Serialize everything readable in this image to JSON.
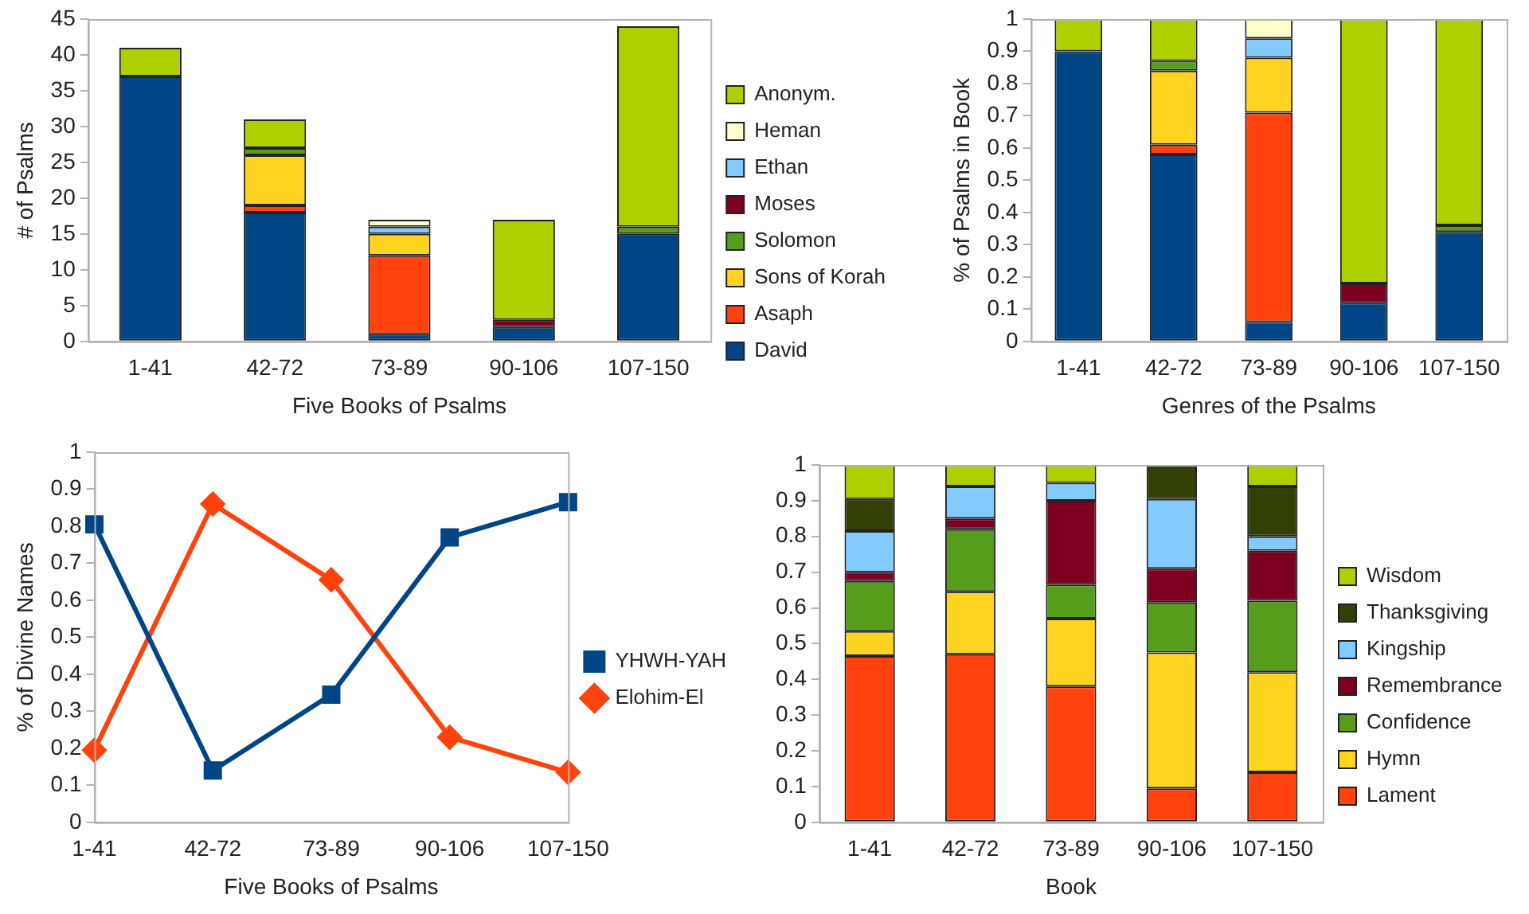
{
  "chart_data": [
    {
      "type": "bar",
      "stacked": true,
      "xlabel": "Five Books of Psalms",
      "ylabel": "# of Psalms",
      "categories": [
        "1-41",
        "42-72",
        "73-89",
        "90-106",
        "107-150"
      ],
      "ylim": [
        0,
        45
      ],
      "yticks": [
        0,
        5,
        10,
        15,
        20,
        25,
        30,
        35,
        40,
        45
      ],
      "grid": false,
      "legend": "right",
      "series": [
        {
          "name": "David",
          "color": "#004586",
          "values": [
            37,
            18,
            1,
            2,
            15
          ]
        },
        {
          "name": "Asaph",
          "color": "#ff420e",
          "values": [
            0,
            1,
            11,
            0,
            0
          ]
        },
        {
          "name": "Sons of Korah",
          "color": "#ffd320",
          "values": [
            0,
            7,
            3,
            0,
            0
          ]
        },
        {
          "name": "Solomon",
          "color": "#579d1c",
          "values": [
            0,
            1,
            0,
            0,
            1
          ]
        },
        {
          "name": "Moses",
          "color": "#7e0021",
          "values": [
            0,
            0,
            0,
            1,
            0
          ]
        },
        {
          "name": "Ethan",
          "color": "#83caff",
          "values": [
            0,
            0,
            1,
            0,
            0
          ]
        },
        {
          "name": "Heman",
          "color": "#ffffcc",
          "values": [
            0,
            0,
            1,
            0,
            0
          ]
        },
        {
          "name": "Anonym.",
          "color": "#aecf00",
          "values": [
            4,
            4,
            0,
            14,
            28
          ]
        }
      ]
    },
    {
      "type": "bar",
      "stacked": true,
      "xlabel": "Genres of the Psalms",
      "ylabel": "% of Psalms in Book",
      "categories": [
        "1-41",
        "42-72",
        "73-89",
        "90-106",
        "107-150"
      ],
      "ylim": [
        0,
        1
      ],
      "yticks": [
        0,
        0.1,
        0.2,
        0.3,
        0.4,
        0.5,
        0.6,
        0.7,
        0.8,
        0.9,
        1
      ],
      "grid": false,
      "legend": false,
      "series": [
        {
          "color": "#004586",
          "values": [
            0.9,
            0.58,
            0.06,
            0.12,
            0.34
          ]
        },
        {
          "color": "#ff420e",
          "values": [
            0,
            0.03,
            0.65,
            0,
            0
          ]
        },
        {
          "color": "#ffd320",
          "values": [
            0,
            0.23,
            0.17,
            0,
            0
          ]
        },
        {
          "color": "#579d1c",
          "values": [
            0,
            0.03,
            0,
            0,
            0.02
          ]
        },
        {
          "color": "#7e0021",
          "values": [
            0,
            0,
            0,
            0.06,
            0
          ]
        },
        {
          "color": "#83caff",
          "values": [
            0,
            0,
            0.06,
            0,
            0
          ]
        },
        {
          "color": "#ffffcc",
          "values": [
            0,
            0,
            0.06,
            0,
            0
          ]
        },
        {
          "color": "#aecf00",
          "values": [
            0.1,
            0.13,
            0,
            0.82,
            0.64
          ]
        }
      ]
    },
    {
      "type": "line",
      "xlabel": "Five Books of Psalms",
      "ylabel": "% of Divine Names",
      "categories": [
        "1-41",
        "42-72",
        "73-89",
        "90-106",
        "107-150"
      ],
      "ylim": [
        0,
        1
      ],
      "yticks": [
        0,
        0.1,
        0.2,
        0.3,
        0.4,
        0.5,
        0.6,
        0.7,
        0.8,
        0.9,
        1
      ],
      "grid": false,
      "legend": "right",
      "line_style": "solid",
      "series": [
        {
          "name": "YHWH-YAH",
          "color": "#004586",
          "marker": "square",
          "values": [
            0.805,
            0.14,
            0.345,
            0.77,
            0.865
          ]
        },
        {
          "name": "Elohim-El",
          "color": "#ff420e",
          "marker": "diamond",
          "values": [
            0.195,
            0.86,
            0.655,
            0.23,
            0.135
          ]
        }
      ]
    },
    {
      "type": "bar",
      "stacked": true,
      "xlabel": "Book",
      "categories": [
        "1-41",
        "42-72",
        "73-89",
        "90-106",
        "107-150"
      ],
      "ylim": [
        0,
        1
      ],
      "yticks": [
        0,
        0.1,
        0.2,
        0.3,
        0.4,
        0.5,
        0.6,
        0.7,
        0.8,
        0.9,
        1
      ],
      "grid": false,
      "legend": "right",
      "series": [
        {
          "name": "Lament",
          "color": "#ff420e",
          "values": [
            0.465,
            0.47,
            0.38,
            0.095,
            0.14
          ]
        },
        {
          "name": "Hymn",
          "color": "#ffd320",
          "values": [
            0.07,
            0.175,
            0.19,
            0.38,
            0.28
          ]
        },
        {
          "name": "Confidence",
          "color": "#579d1c",
          "values": [
            0.14,
            0.175,
            0.095,
            0.14,
            0.2
          ]
        },
        {
          "name": "Remembrance",
          "color": "#7e0021",
          "values": [
            0.025,
            0.03,
            0.235,
            0.095,
            0.14
          ]
        },
        {
          "name": "Kingship",
          "color": "#83caff",
          "values": [
            0.115,
            0.09,
            0.05,
            0.195,
            0.04
          ]
        },
        {
          "name": "Thanksgiving",
          "color": "#314004",
          "values": [
            0.09,
            0,
            0,
            0.095,
            0.14
          ]
        },
        {
          "name": "Wisdom",
          "color": "#aecf00",
          "values": [
            0.095,
            0.06,
            0.05,
            0,
            0.06
          ]
        }
      ]
    }
  ]
}
